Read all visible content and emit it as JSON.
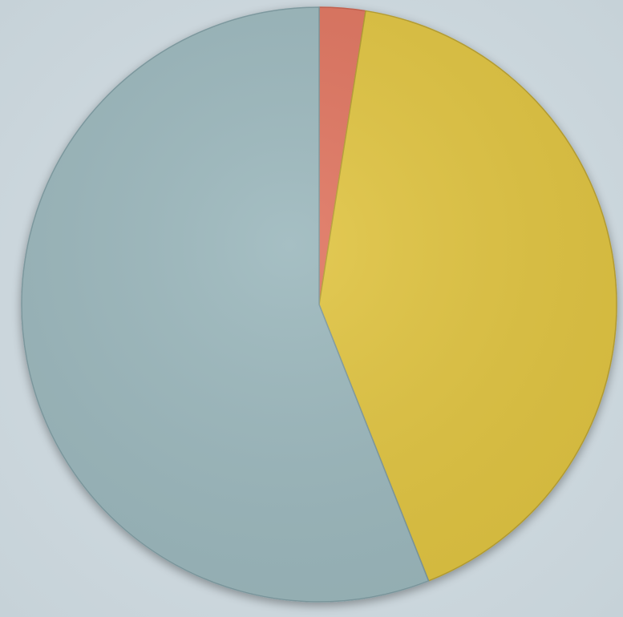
{
  "chart_data": {
    "type": "pie",
    "title": "",
    "start_angle_deg": 0,
    "direction": "clockwise",
    "slices": [
      {
        "value": 2.5,
        "color": "#df7560",
        "edge": "#c4604e"
      },
      {
        "value": 41.5,
        "color": "#e0c443",
        "edge": "#b69e30"
      },
      {
        "value": 56.0,
        "color": "#9cb8bd",
        "edge": "#7e9aa0"
      }
    ],
    "legend": "none",
    "data_labels": "none"
  }
}
